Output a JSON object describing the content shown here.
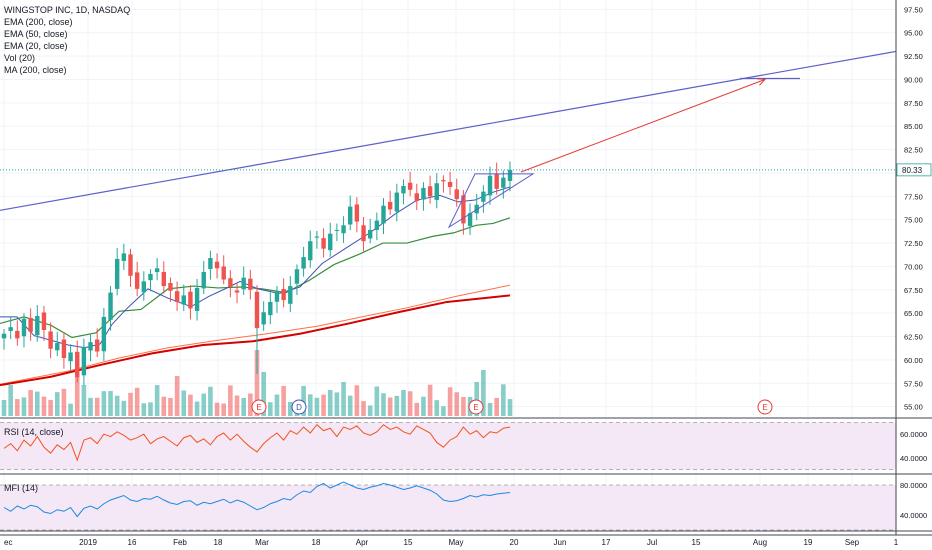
{
  "legend": {
    "title": "WINGSTOP INC, 1D, NASDAQ",
    "studies": [
      "EMA (200, close)",
      "EMA (50, close)",
      "EMA (20, close)",
      "Vol (20)",
      "MA (200, close)"
    ]
  },
  "rsi_label": "RSI (14, close)",
  "mfi_label": "MFI (14)",
  "colors": {
    "up": "#26a69a",
    "down": "#ef5350",
    "ema20": "#3f51b5",
    "ema50": "#388e3c",
    "ema200": "#ff7043",
    "ma200": "#d50000",
    "trend": "#5c5fc9",
    "arrow": "#e53935",
    "rsi": "#f4511e",
    "mfi": "#1e88e5",
    "panel": "#f3e5f5"
  },
  "chart_data": {
    "type": "candlestick",
    "symbol": "WINGSTOP INC",
    "interval": "1D",
    "exchange": "NASDAQ",
    "last_price": "80.33",
    "price_ticks": [
      "97.50",
      "95.00",
      "92.50",
      "90.00",
      "87.50",
      "85.00",
      "82.50",
      "80.00",
      "77.50",
      "75.00",
      "72.50",
      "70.00",
      "67.50",
      "65.00",
      "62.50",
      "60.00",
      "57.50",
      "55.00"
    ],
    "price_range": [
      54.0,
      98.5
    ],
    "date_labels": [
      "ec",
      "2019",
      "16",
      "Feb",
      "18",
      "Mar",
      "18",
      "Apr",
      "15",
      "May",
      "20",
      "Jun",
      "17",
      "Jul",
      "15",
      "Aug",
      "19",
      "Sep",
      "1"
    ],
    "closes": [
      62.8,
      63.5,
      62.3,
      64.4,
      63.0,
      64.7,
      63.2,
      61.2,
      61.8,
      60.2,
      60.8,
      58.1,
      61.4,
      61.9,
      60.9,
      64.6,
      67.2,
      70.8,
      71.4,
      69.0,
      67.6,
      68.4,
      69.2,
      69.8,
      67.9,
      67.4,
      66.2,
      66.9,
      65.5,
      67.7,
      69.4,
      70.9,
      69.8,
      68.6,
      67.8,
      67.2,
      68.8,
      67.5,
      63.4,
      65.1,
      66.2,
      67.3,
      66.4,
      67.9,
      69.7,
      71.0,
      72.7,
      73.2,
      71.9,
      73.5,
      73.9,
      74.4,
      76.4,
      74.8,
      72.7,
      73.9,
      74.9,
      76.5,
      76.1,
      77.9,
      78.6,
      78.2,
      77.0,
      78.4,
      77.5,
      78.9,
      79.1,
      78.5,
      77.2,
      74.6,
      75.7,
      76.6,
      78.0,
      79.7,
      78.3,
      79.5,
      80.33
    ],
    "volume_markers": [
      "E",
      "D",
      "E",
      "E"
    ],
    "ema20": [
      [
        0,
        64.6
      ],
      [
        17,
        64.6
      ],
      [
        34,
        62.6
      ],
      [
        51,
        62.1
      ],
      [
        68,
        61.6
      ],
      [
        85,
        61.3
      ],
      [
        100,
        61.7
      ],
      [
        112,
        63.8
      ],
      [
        126,
        65.4
      ],
      [
        148,
        67.6
      ],
      [
        168,
        66.6
      ],
      [
        191,
        65.7
      ],
      [
        209,
        66.8
      ],
      [
        225,
        67.6
      ],
      [
        240,
        68.4
      ],
      [
        258,
        67.6
      ],
      [
        279,
        67.1
      ],
      [
        300,
        67.8
      ],
      [
        322,
        70.3
      ],
      [
        345,
        71.9
      ],
      [
        370,
        73.6
      ],
      [
        395,
        75.6
      ],
      [
        417,
        77.1
      ],
      [
        440,
        77.6
      ],
      [
        458,
        76.9
      ],
      [
        475,
        77.1
      ],
      [
        492,
        77.9
      ],
      [
        510,
        78.5
      ]
    ],
    "ema50": [
      [
        0,
        63.9
      ],
      [
        24,
        64.6
      ],
      [
        51,
        63.7
      ],
      [
        72,
        62.4
      ],
      [
        96,
        62.9
      ],
      [
        119,
        65.2
      ],
      [
        141,
        65.4
      ],
      [
        168,
        67.6
      ],
      [
        194,
        67.9
      ],
      [
        218,
        67.7
      ],
      [
        242,
        67.8
      ],
      [
        262,
        67.6
      ],
      [
        286,
        67.2
      ],
      [
        309,
        68.5
      ],
      [
        334,
        70.2
      ],
      [
        359,
        71.3
      ],
      [
        383,
        72.5
      ],
      [
        407,
        72.5
      ],
      [
        432,
        73.2
      ],
      [
        454,
        73.6
      ],
      [
        476,
        74.4
      ],
      [
        493,
        74.6
      ],
      [
        510,
        75.2
      ]
    ],
    "ema200": [
      [
        0,
        57.4
      ],
      [
        68,
        58.8
      ],
      [
        119,
        60.2
      ],
      [
        168,
        61.3
      ],
      [
        218,
        62.1
      ],
      [
        267,
        62.8
      ],
      [
        317,
        63.6
      ],
      [
        366,
        64.7
      ],
      [
        408,
        65.6
      ],
      [
        456,
        66.8
      ],
      [
        510,
        68.0
      ]
    ],
    "ma200": [
      [
        0,
        57.3
      ],
      [
        51,
        58.2
      ],
      [
        102,
        59.5
      ],
      [
        152,
        60.7
      ],
      [
        203,
        61.6
      ],
      [
        253,
        62.0
      ],
      [
        300,
        62.8
      ],
      [
        349,
        63.9
      ],
      [
        398,
        65.1
      ],
      [
        447,
        66.2
      ],
      [
        510,
        66.9
      ]
    ],
    "trendline": [
      [
        0,
        76.0
      ],
      [
        896,
        93.0
      ]
    ],
    "target_line": [
      [
        740,
        90.1
      ],
      [
        800,
        90.1
      ]
    ],
    "triangle": [
      [
        475,
        79.9
      ],
      [
        533,
        79.9
      ],
      [
        449,
        74.2
      ]
    ],
    "projection_arrow": [
      [
        521,
        80.1
      ],
      [
        765,
        90.0
      ]
    ],
    "rsi": {
      "ticks": [
        "60.0000",
        "40.0000"
      ],
      "range": [
        28,
        72
      ],
      "values": [
        48,
        52,
        46,
        55,
        50,
        58,
        49,
        44,
        51,
        47,
        53,
        38,
        55,
        57,
        52,
        60,
        58,
        62,
        59,
        55,
        57,
        60,
        52,
        56,
        58,
        54,
        50,
        57,
        59,
        53,
        56,
        51,
        58,
        61,
        55,
        60,
        54,
        49,
        45,
        52,
        57,
        61,
        55,
        63,
        60,
        66,
        61,
        68,
        63,
        65,
        58,
        66,
        64,
        67,
        61,
        59,
        62,
        68,
        64,
        66,
        62,
        60,
        67,
        64,
        61,
        53,
        49,
        55,
        58,
        66,
        60,
        63,
        57,
        62,
        61,
        65,
        66
      ]
    },
    "mfi": {
      "ticks": [
        "80.0000",
        "40.0000"
      ],
      "range": [
        20,
        92
      ],
      "values": [
        50,
        45,
        52,
        48,
        53,
        51,
        44,
        42,
        47,
        45,
        50,
        38,
        49,
        52,
        48,
        55,
        60,
        63,
        66,
        60,
        58,
        62,
        61,
        65,
        60,
        56,
        54,
        58,
        59,
        53,
        57,
        55,
        58,
        61,
        56,
        60,
        57,
        52,
        47,
        50,
        55,
        58,
        62,
        60,
        67,
        72,
        70,
        78,
        82,
        76,
        80,
        84,
        80,
        76,
        74,
        77,
        79,
        82,
        80,
        77,
        74,
        76,
        79,
        76,
        73,
        68,
        60,
        58,
        59,
        62,
        66,
        64,
        67,
        66,
        68,
        69,
        70
      ]
    }
  }
}
